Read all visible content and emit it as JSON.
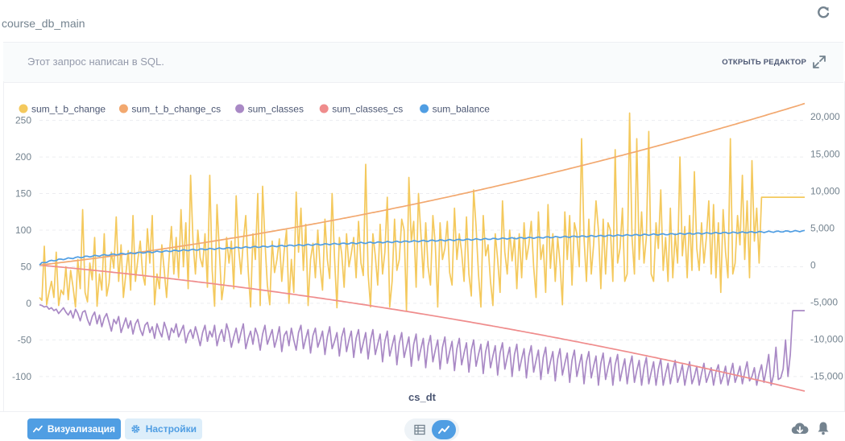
{
  "header": {
    "db_title": "course_db_main"
  },
  "query": {
    "note": "Этот запрос написан в SQL.",
    "open_editor": "ОТКРЫТЬ РЕДАКТОР"
  },
  "footer": {
    "visualization_label": "Визуализация",
    "settings_label": "Настройки"
  },
  "colors": {
    "accent": "#509ee3",
    "text": "#4c5773",
    "muted": "#949aab"
  },
  "icons": [
    "refresh-icon",
    "expand-icon",
    "chart-line-icon",
    "gear-icon",
    "table-icon",
    "download-icon",
    "bell-icon"
  ],
  "chart_data": {
    "type": "line",
    "xlabel": "cs_dt",
    "legend_position": "top-left",
    "grid": true,
    "left_axis": {
      "ylim": [
        -120,
        265
      ],
      "ticks": [
        -100,
        -50,
        0,
        50,
        100,
        150,
        200,
        250
      ]
    },
    "right_axis": {
      "ylim": [
        -17000,
        21000
      ],
      "ticks": [
        -15000,
        -10000,
        -5000,
        0,
        5000,
        10000,
        15000,
        20000
      ],
      "tick_labels": [
        "-15,000",
        "-10,000",
        "-5,000",
        "0",
        "5,000",
        "10,000",
        "15,000",
        "20,000"
      ]
    },
    "x_points": 320,
    "series": [
      {
        "name": "sum_t_b_change",
        "color": "#f4c95d",
        "axis": "left",
        "values": [
          8,
          4,
          78,
          -2,
          15,
          30,
          8,
          70,
          -3,
          18,
          12,
          50,
          5,
          45,
          22,
          -5,
          60,
          20,
          128,
          15,
          2,
          55,
          32,
          90,
          -4,
          40,
          18,
          95,
          10,
          28,
          70,
          48,
          118,
          30,
          80,
          8,
          40,
          72,
          18,
          120,
          30,
          60,
          85,
          40,
          25,
          102,
          55,
          120,
          -2,
          40,
          20,
          80,
          45,
          8,
          60,
          105,
          40,
          90,
          35,
          128,
          50,
          110,
          20,
          175,
          85,
          40,
          100,
          62,
          50,
          95,
          22,
          175,
          45,
          -4,
          135,
          70,
          5,
          30,
          90,
          55,
          85,
          20,
          147,
          75,
          40,
          85,
          120,
          45,
          -5,
          95,
          60,
          150,
          -3,
          160,
          85,
          25,
          -2,
          85,
          42,
          60,
          88,
          30,
          72,
          100,
          0,
          60,
          15,
          152,
          70,
          130,
          45,
          108,
          -3,
          60,
          82,
          35,
          100,
          50,
          18,
          115,
          60,
          34,
          150,
          62,
          -6,
          90,
          68,
          22,
          95,
          50,
          68,
          90,
          35,
          112,
          55,
          38,
          190,
          40,
          -5,
          95,
          65,
          25,
          108,
          40,
          70,
          145,
          -5,
          30,
          115,
          45,
          60,
          115,
          100,
          -10,
          172,
          85,
          112,
          22,
          150,
          95,
          35,
          110,
          50,
          25,
          120,
          80,
          -5,
          110,
          60,
          75,
          112,
          42,
          25,
          130,
          60,
          95,
          70,
          30,
          118,
          40,
          10,
          155,
          105,
          40,
          -5,
          120,
          65,
          80,
          30,
          -3,
          95,
          60,
          15,
          140,
          70,
          40,
          100,
          58,
          90,
          20,
          95,
          35,
          110,
          60,
          80,
          112,
          50,
          8,
          125,
          60,
          80,
          15,
          135,
          48,
          95,
          30,
          90,
          55,
          -2,
          125,
          60,
          120,
          25,
          110,
          95,
          50,
          225,
          90,
          30,
          115,
          40,
          80,
          140,
          100,
          20,
          115,
          40,
          110,
          100,
          30,
          210,
          55,
          75,
          130,
          30,
          40,
          260,
          90,
          40,
          225,
          60,
          125,
          55,
          90,
          235,
          40,
          30,
          110,
          75,
          155,
          45,
          90,
          30,
          130,
          35,
          95,
          55,
          200,
          65,
          105,
          35,
          120,
          45,
          180,
          75,
          45,
          110,
          55,
          90,
          140,
          40,
          135,
          35,
          110,
          15,
          128,
          70,
          35,
          225,
          40,
          55,
          120,
          80,
          175,
          60,
          140,
          35,
          195,
          85,
          130,
          55,
          145
        ]
      },
      {
        "name": "sum_t_b_change_cs",
        "color": "#f2a86f",
        "axis": "right",
        "start": 0,
        "end": 21800
      },
      {
        "name": "sum_classes",
        "color": "#a989c5",
        "axis": "left",
        "values": [
          -2,
          -3,
          -5,
          -4,
          -8,
          -6,
          -10,
          -8,
          -14,
          -10,
          -6,
          -12,
          -16,
          -10,
          -20,
          -8,
          -14,
          -24,
          -12,
          -10,
          -22,
          -30,
          -18,
          -12,
          -28,
          -16,
          -32,
          -20,
          -14,
          -26,
          -38,
          -22,
          -28,
          -18,
          -40,
          -30,
          -20,
          -34,
          -24,
          -42,
          -28,
          -22,
          -36,
          -44,
          -30,
          -26,
          -40,
          -32,
          -48,
          -28,
          -38,
          -46,
          -26,
          -36,
          -50,
          -34,
          -40,
          -28,
          -46,
          -38,
          -30,
          -54,
          -42,
          -36,
          -48,
          -32,
          -44,
          -58,
          -40,
          -30,
          -52,
          -38,
          -46,
          -30,
          -58,
          -44,
          -36,
          -52,
          -28,
          -40,
          -60,
          -46,
          -34,
          -54,
          -40,
          -28,
          -62,
          -48,
          -38,
          -56,
          -34,
          -44,
          -64,
          -42,
          -30,
          -56,
          -46,
          -36,
          -60,
          -48,
          -32,
          -66,
          -44,
          -38,
          -58,
          -34,
          -50,
          -64,
          -40,
          -30,
          -62,
          -48,
          -36,
          -68,
          -44,
          -34,
          -60,
          -50,
          -38,
          -70,
          -46,
          -32,
          -62,
          -52,
          -40,
          -72,
          -46,
          -34,
          -66,
          -50,
          -38,
          -74,
          -48,
          -36,
          -68,
          -54,
          -40,
          -76,
          -50,
          -36,
          -70,
          -56,
          -42,
          -80,
          -52,
          -38,
          -72,
          -58,
          -44,
          -84,
          -54,
          -40,
          -74,
          -60,
          -46,
          -86,
          -56,
          -42,
          -78,
          -62,
          -48,
          -88,
          -58,
          -44,
          -80,
          -64,
          -50,
          -90,
          -60,
          -46,
          -82,
          -66,
          -52,
          -92,
          -62,
          -48,
          -84,
          -68,
          -54,
          -94,
          -64,
          -50,
          -86,
          -70,
          -56,
          -96,
          -66,
          -52,
          -88,
          -72,
          -58,
          -98,
          -68,
          -54,
          -90,
          -74,
          -60,
          -100,
          -70,
          -56,
          -92,
          -76,
          -62,
          -102,
          -72,
          -58,
          -94,
          -78,
          -64,
          -104,
          -74,
          -60,
          -96,
          -80,
          -66,
          -106,
          -76,
          -62,
          -98,
          -82,
          -68,
          -108,
          -78,
          -64,
          -100,
          -84,
          -70,
          -110,
          -80,
          -66,
          -102,
          -86,
          -72,
          -112,
          -82,
          -68,
          -104,
          -88,
          -74,
          -112,
          -84,
          -70,
          -106,
          -90,
          -76,
          -110,
          -86,
          -72,
          -108,
          -92,
          -78,
          -112,
          -88,
          -74,
          -110,
          -94,
          -80,
          -112,
          -90,
          -76,
          -112,
          -96,
          -82,
          -110,
          -92,
          -78,
          -108,
          -98,
          -84,
          -112,
          -94,
          -80,
          -110,
          -100,
          -86,
          -112,
          -96,
          -82,
          -108,
          -98,
          -88,
          -112,
          -94,
          -84,
          -110,
          -100,
          -86,
          -112,
          -96,
          -82,
          -108,
          -98,
          -86,
          -110,
          -94,
          -80,
          -106,
          -100,
          -88,
          -112,
          -96,
          -84,
          -108,
          -90,
          -70,
          -112,
          -98,
          -60,
          -104,
          -102,
          -90,
          -50,
          -100,
          -70,
          -10
        ]
      },
      {
        "name": "sum_classes_cs",
        "color": "#ef8c8c",
        "axis": "right",
        "start": 0,
        "end": -17000
      },
      {
        "name": "sum_balance",
        "color": "#509ee3",
        "axis": "right",
        "start": 0,
        "end": 4600
      }
    ]
  }
}
